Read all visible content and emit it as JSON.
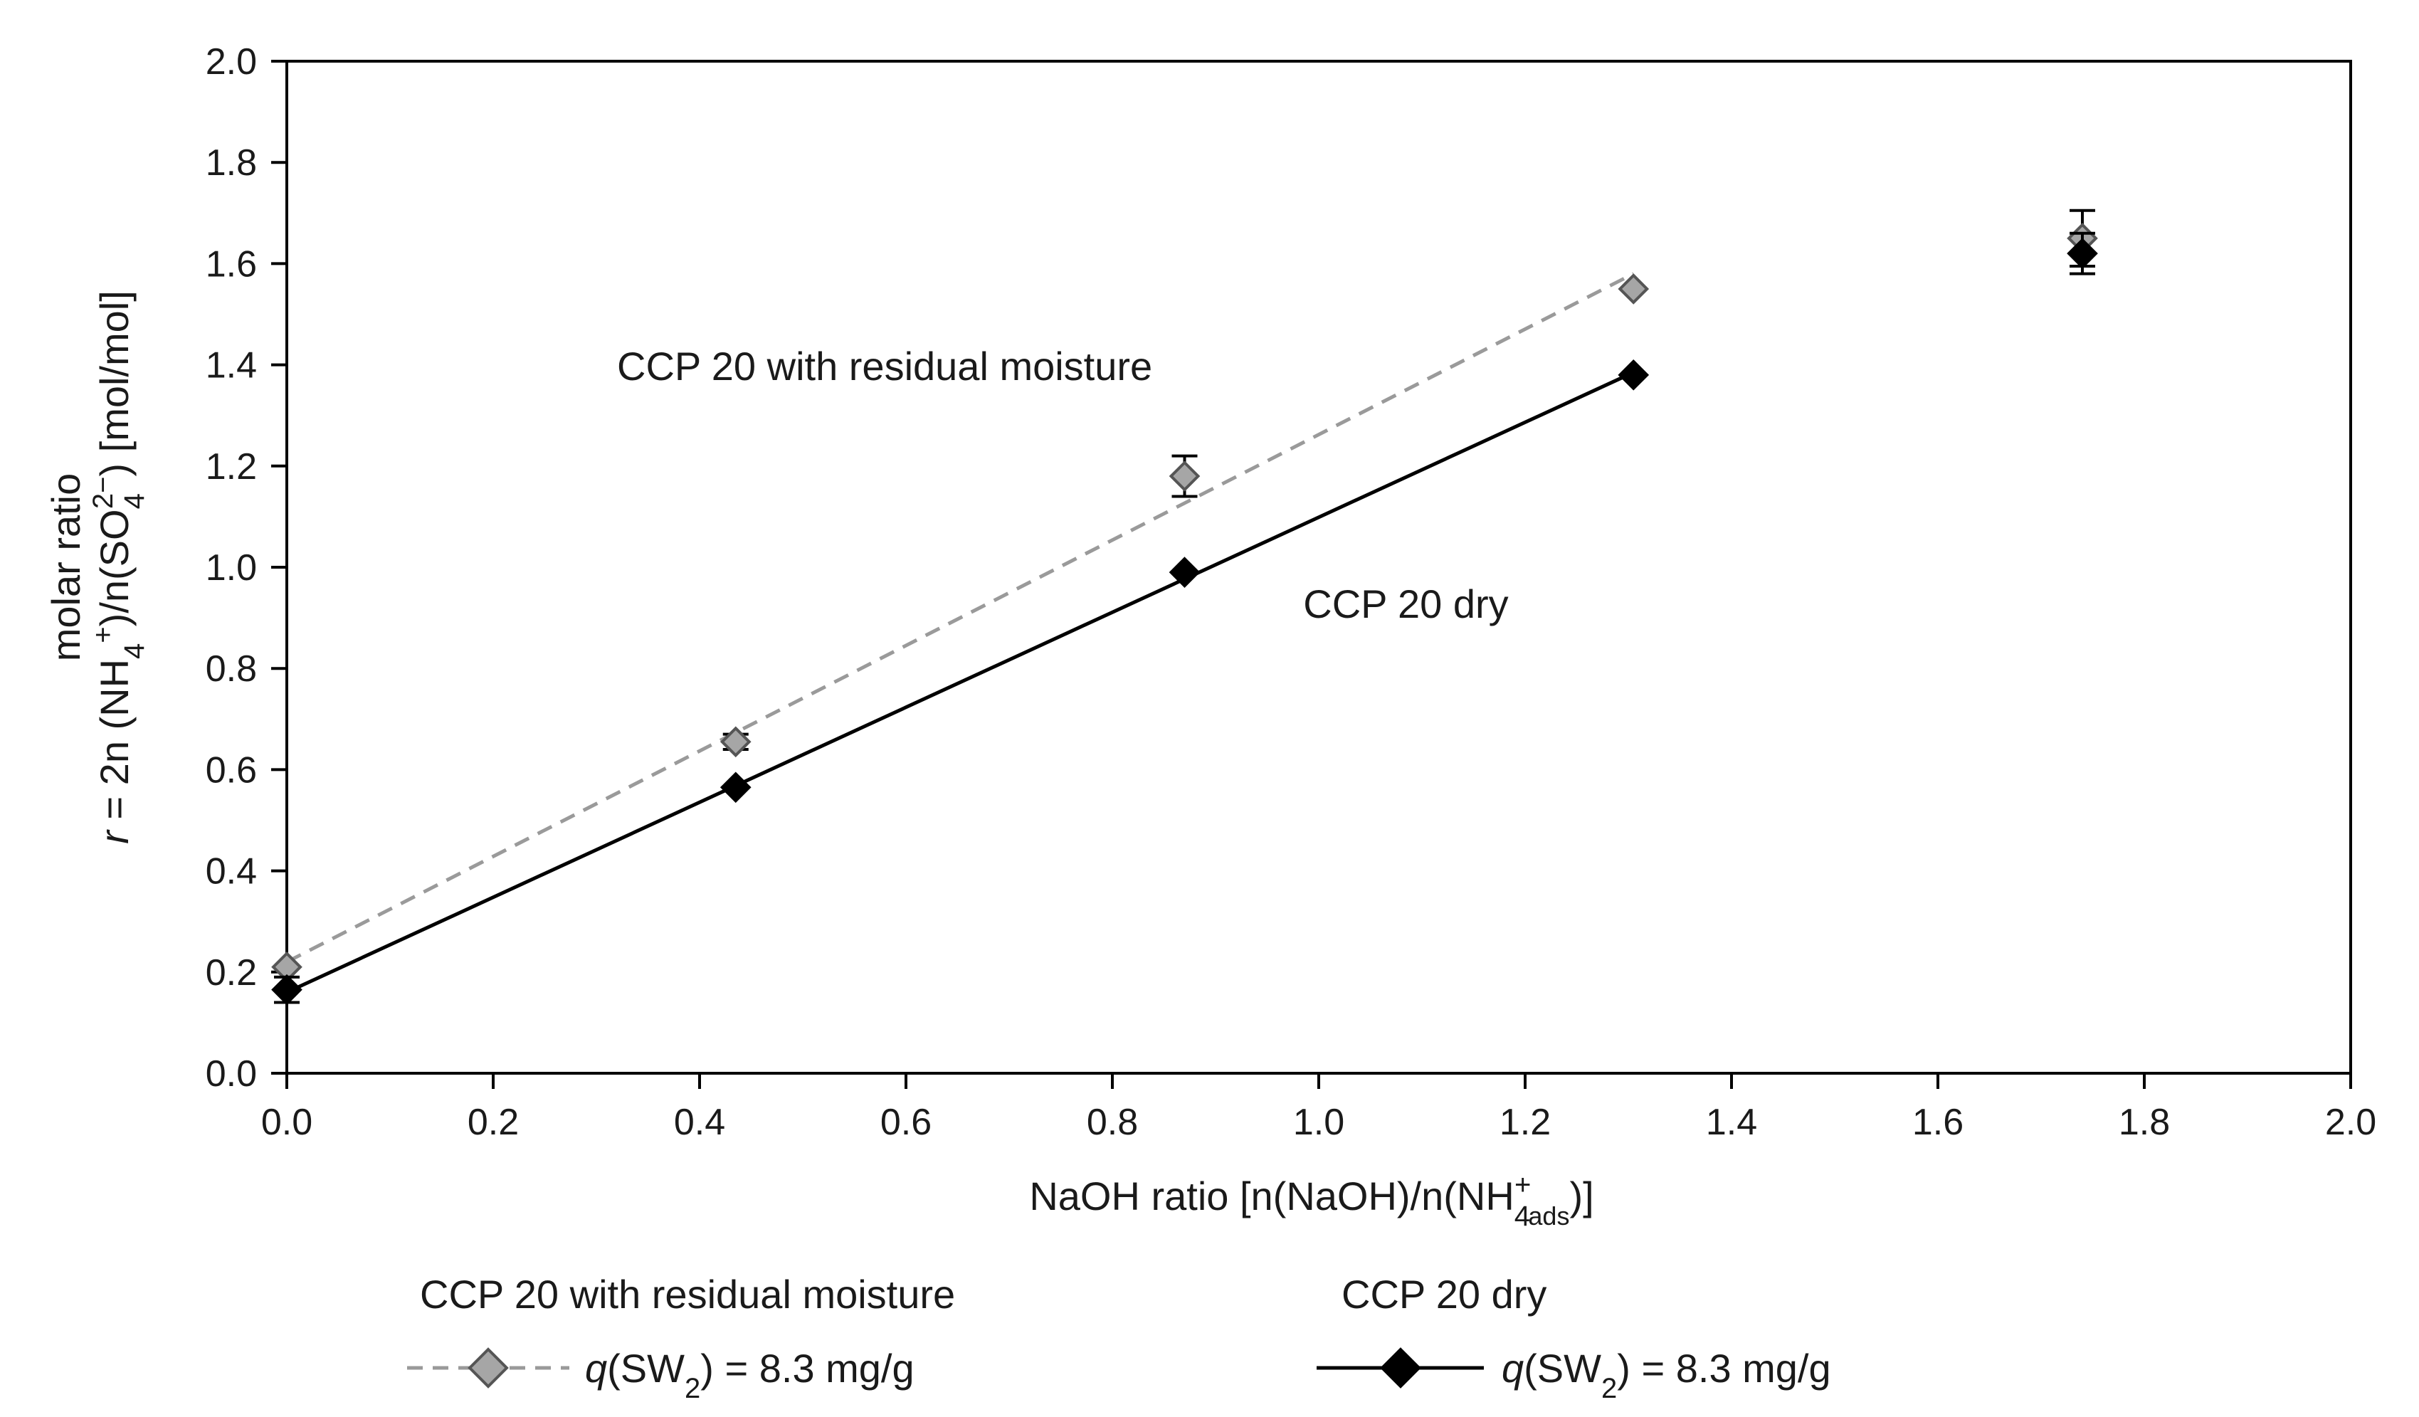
{
  "chart_data": {
    "type": "scatter",
    "x_axis": {
      "label": "NaOH ratio [n(NaOH)/n(NH4+ads)]",
      "label_parts": [
        "NaOH ratio [n(NaOH)/n(NH",
        "4",
        "+",
        "ads",
        ")]"
      ],
      "range": [
        0.0,
        2.0
      ],
      "ticks": [
        "0.0",
        "0.2",
        "0.4",
        "0.6",
        "0.8",
        "1.0",
        "1.2",
        "1.4",
        "1.6",
        "1.8",
        "2.0"
      ]
    },
    "y_axis": {
      "label_line1": "molar ratio",
      "label_line2": "r = 2n (NH4+)/n(SO42−) [mol/mol]",
      "label_parts": [
        "r",
        " = 2n (NH",
        "4",
        "+",
        ")/n(SO",
        "4",
        "2−",
        ") [mol/mol]"
      ],
      "range": [
        0.0,
        2.0
      ],
      "ticks": [
        "0.0",
        "0.2",
        "0.4",
        "0.6",
        "0.8",
        "1.0",
        "1.2",
        "1.4",
        "1.6",
        "1.8",
        "2.0"
      ]
    },
    "grid": false,
    "series": [
      {
        "name": "CCP 20 with residual moisture",
        "legend_label": "q(SW2) = 8.3 mg/g",
        "marker_color": "#a6a6a6",
        "line_color": "#9a9a9a",
        "line_style": "dashed",
        "x": [
          0.0,
          0.435,
          0.87,
          1.305,
          1.74
        ],
        "y": [
          0.21,
          0.655,
          1.18,
          1.55,
          1.65
        ],
        "error": [
          0.0,
          0.015,
          0.04,
          0.0,
          0.055
        ],
        "fit_line": {
          "x": [
            0.0,
            1.305
          ],
          "y": [
            0.22,
            1.58
          ]
        }
      },
      {
        "name": "CCP 20 dry",
        "legend_label": "q(SW2) = 8.3 mg/g",
        "marker_color": "#000000",
        "line_color": "#000000",
        "line_style": "solid",
        "x": [
          0.0,
          0.435,
          0.87,
          1.305,
          1.74
        ],
        "y": [
          0.165,
          0.565,
          0.99,
          1.38,
          1.62
        ],
        "error": [
          0.025,
          0.0,
          0.0,
          0.0,
          0.04
        ],
        "fit_line": {
          "x": [
            0.0,
            1.305
          ],
          "y": [
            0.16,
            1.385
          ]
        }
      }
    ],
    "annotations": [
      {
        "text": "CCP 20 with residual moisture",
        "x": 0.32,
        "y": 1.37
      },
      {
        "text": "CCP 20 dry",
        "x": 0.985,
        "y": 0.9
      }
    ],
    "legend": {
      "placement": "bottom",
      "headers": [
        "CCP 20 with residual moisture",
        "CCP 20 dry"
      ],
      "entry_parts": [
        "q",
        "(SW",
        "2",
        ") = 8.3 mg/g"
      ]
    }
  }
}
